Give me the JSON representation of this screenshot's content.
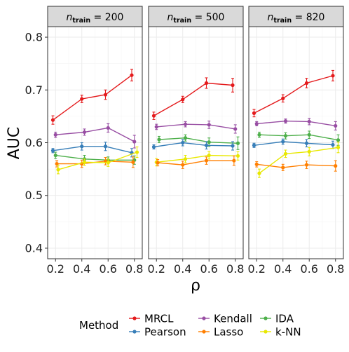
{
  "chart_data": {
    "type": "line",
    "xlabel": "ρ",
    "ylabel": "AUC",
    "ylim": [
      0.38,
      0.82
    ],
    "yticks": [
      0.4,
      0.5,
      0.6,
      0.7,
      0.8
    ],
    "xlim": [
      0.14,
      0.86
    ],
    "xticks": [
      0.2,
      0.4,
      0.6,
      0.8
    ],
    "grid": true,
    "legend": {
      "title": "Method",
      "placement": "bottom",
      "entries": [
        {
          "name": "MRCL",
          "color": "#e41a1c"
        },
        {
          "name": "Pearson",
          "color": "#377eb8"
        },
        {
          "name": "Kendall",
          "color": "#984ea3"
        },
        {
          "name": "Lasso",
          "color": "#ff7f00"
        },
        {
          "name": "IDA",
          "color": "#4daf4a"
        },
        {
          "name": "k-NN",
          "color": "#e8e800"
        }
      ]
    },
    "panels": [
      {
        "strip_main": "n",
        "strip_sub": "train",
        "strip_value": " = 200",
        "series": [
          {
            "name": "MRCL",
            "color": "#e41a1c",
            "x": [
              0.18,
              0.4,
              0.58,
              0.78
            ],
            "y": [
              0.643,
              0.683,
              0.691,
              0.728
            ],
            "err": [
              0.008,
              0.007,
              0.009,
              0.011
            ]
          },
          {
            "name": "Kendall",
            "color": "#984ea3",
            "x": [
              0.2,
              0.42,
              0.6,
              0.8
            ],
            "y": [
              0.615,
              0.62,
              0.628,
              0.602
            ],
            "err": [
              0.005,
              0.006,
              0.008,
              0.012
            ]
          },
          {
            "name": "Pearson",
            "color": "#377eb8",
            "x": [
              0.18,
              0.4,
              0.58,
              0.78
            ],
            "y": [
              0.585,
              0.593,
              0.593,
              0.581
            ],
            "err": [
              0.004,
              0.007,
              0.008,
              0.008
            ]
          },
          {
            "name": "IDA",
            "color": "#4daf4a",
            "x": [
              0.2,
              0.42,
              0.6,
              0.8
            ],
            "y": [
              0.576,
              0.569,
              0.567,
              0.567
            ],
            "err": [
              0.006,
              0.007,
              0.006,
              0.008
            ]
          },
          {
            "name": "Lasso",
            "color": "#ff7f00",
            "x": [
              0.21,
              0.4,
              0.58,
              0.79
            ],
            "y": [
              0.56,
              0.56,
              0.565,
              0.563
            ],
            "err": [
              0.006,
              0.007,
              0.007,
              0.01
            ]
          },
          {
            "name": "k-NN",
            "color": "#e8e800",
            "x": [
              0.22,
              0.42,
              0.6,
              0.82
            ],
            "y": [
              0.549,
              0.563,
              0.562,
              0.582
            ],
            "err": [
              0.008,
              0.006,
              0.007,
              0.01
            ]
          }
        ]
      },
      {
        "strip_main": "n",
        "strip_sub": "train",
        "strip_value": " = 500",
        "series": [
          {
            "name": "MRCL",
            "color": "#e41a1c",
            "x": [
              0.18,
              0.4,
              0.58,
              0.78
            ],
            "y": [
              0.651,
              0.682,
              0.713,
              0.709
            ],
            "err": [
              0.007,
              0.006,
              0.01,
              0.013
            ]
          },
          {
            "name": "Kendall",
            "color": "#984ea3",
            "x": [
              0.2,
              0.42,
              0.6,
              0.8
            ],
            "y": [
              0.63,
              0.635,
              0.634,
              0.626
            ],
            "err": [
              0.005,
              0.005,
              0.007,
              0.008
            ]
          },
          {
            "name": "IDA",
            "color": "#4daf4a",
            "x": [
              0.22,
              0.42,
              0.6,
              0.82
            ],
            "y": [
              0.606,
              0.609,
              0.601,
              0.599
            ],
            "err": [
              0.006,
              0.006,
              0.008,
              0.012
            ]
          },
          {
            "name": "Pearson",
            "color": "#377eb8",
            "x": [
              0.18,
              0.4,
              0.58,
              0.78
            ],
            "y": [
              0.592,
              0.6,
              0.595,
              0.594
            ],
            "err": [
              0.004,
              0.006,
              0.007,
              0.008
            ]
          },
          {
            "name": "k-NN",
            "color": "#e8e800",
            "x": [
              0.2,
              0.42,
              0.6,
              0.82
            ],
            "y": [
              0.563,
              0.569,
              0.576,
              0.575
            ],
            "err": [
              0.007,
              0.007,
              0.007,
              0.008
            ]
          },
          {
            "name": "Lasso",
            "color": "#ff7f00",
            "x": [
              0.21,
              0.4,
              0.58,
              0.79
            ],
            "y": [
              0.562,
              0.558,
              0.566,
              0.566
            ],
            "err": [
              0.006,
              0.007,
              0.007,
              0.009
            ]
          }
        ]
      },
      {
        "strip_main": "n",
        "strip_sub": "train",
        "strip_value": " = 820",
        "series": [
          {
            "name": "MRCL",
            "color": "#e41a1c",
            "x": [
              0.18,
              0.4,
              0.58,
              0.78
            ],
            "y": [
              0.656,
              0.684,
              0.713,
              0.727
            ],
            "err": [
              0.007,
              0.007,
              0.009,
              0.01
            ]
          },
          {
            "name": "Kendall",
            "color": "#984ea3",
            "x": [
              0.2,
              0.42,
              0.6,
              0.8
            ],
            "y": [
              0.636,
              0.641,
              0.64,
              0.632
            ],
            "err": [
              0.004,
              0.004,
              0.006,
              0.008
            ]
          },
          {
            "name": "IDA",
            "color": "#4daf4a",
            "x": [
              0.22,
              0.42,
              0.6,
              0.82
            ],
            "y": [
              0.615,
              0.613,
              0.615,
              0.605
            ],
            "err": [
              0.005,
              0.006,
              0.007,
              0.01
            ]
          },
          {
            "name": "Pearson",
            "color": "#377eb8",
            "x": [
              0.18,
              0.4,
              0.58,
              0.78
            ],
            "y": [
              0.595,
              0.602,
              0.599,
              0.596
            ],
            "err": [
              0.004,
              0.005,
              0.007,
              0.007
            ]
          },
          {
            "name": "k-NN",
            "color": "#e8e800",
            "x": [
              0.22,
              0.42,
              0.6,
              0.82
            ],
            "y": [
              0.542,
              0.579,
              0.583,
              0.591
            ],
            "err": [
              0.008,
              0.007,
              0.008,
              0.01
            ]
          },
          {
            "name": "Lasso",
            "color": "#ff7f00",
            "x": [
              0.2,
              0.4,
              0.58,
              0.8
            ],
            "y": [
              0.559,
              0.553,
              0.558,
              0.556
            ],
            "err": [
              0.005,
              0.006,
              0.007,
              0.01
            ]
          }
        ]
      }
    ]
  }
}
